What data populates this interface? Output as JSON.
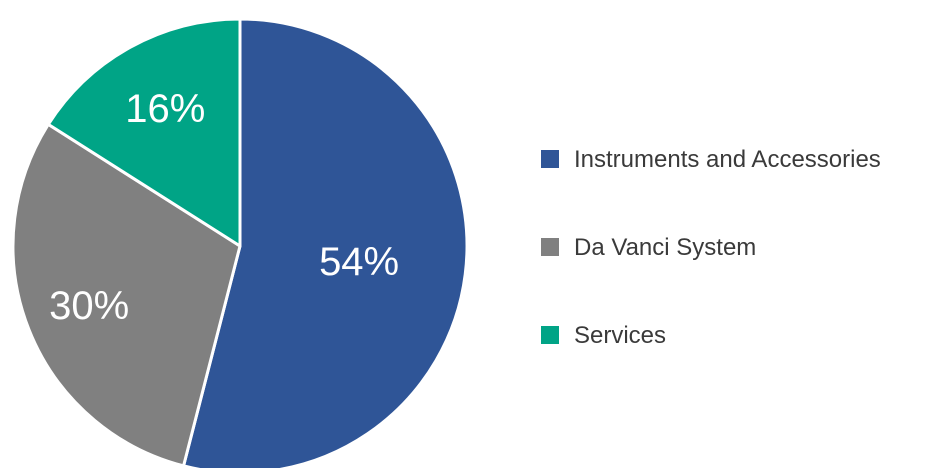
{
  "chart_data": {
    "type": "pie",
    "title": "",
    "legend_position": "right",
    "slices": [
      {
        "label": "Instruments and Accessories",
        "value": 54,
        "display": "54%",
        "color": "#2f5597"
      },
      {
        "label": "Da Vanci System",
        "value": 30,
        "display": "30%",
        "color": "#808080"
      },
      {
        "label": "Services",
        "value": 16,
        "display": "16%",
        "color": "#00a486"
      }
    ]
  }
}
